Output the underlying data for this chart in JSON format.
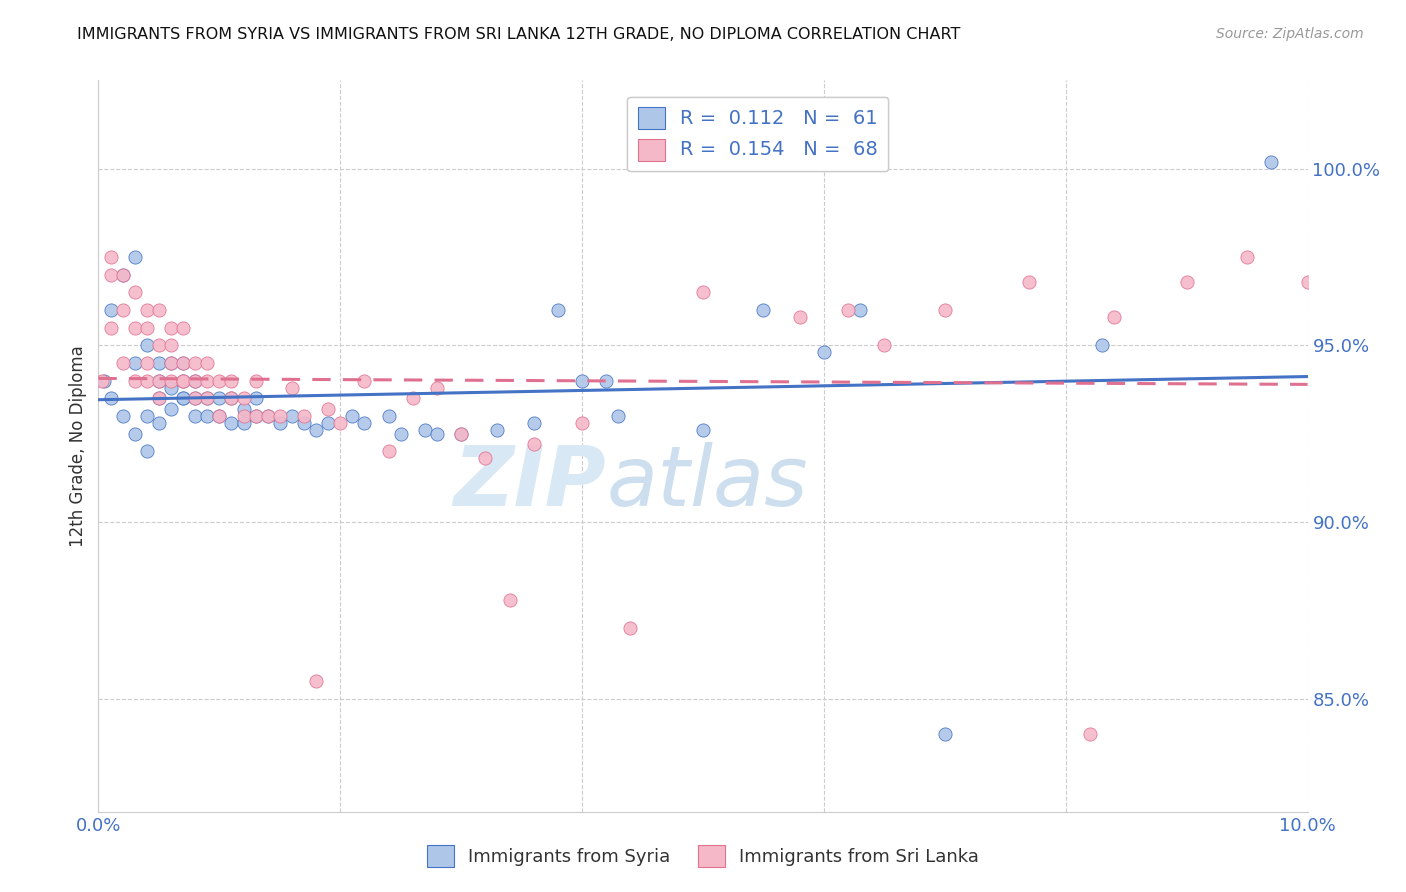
{
  "title": "IMMIGRANTS FROM SYRIA VS IMMIGRANTS FROM SRI LANKA 12TH GRADE, NO DIPLOMA CORRELATION CHART",
  "source": "Source: ZipAtlas.com",
  "ylabel": "12th Grade, No Diploma",
  "x_min": 0.0,
  "x_max": 0.1,
  "y_min": 0.818,
  "y_max": 1.025,
  "x_ticks": [
    0.0,
    0.02,
    0.04,
    0.06,
    0.08,
    0.1
  ],
  "x_tick_labels": [
    "0.0%",
    "",
    "",
    "",
    "",
    "10.0%"
  ],
  "y_ticks": [
    0.85,
    0.9,
    0.95,
    1.0
  ],
  "y_tick_labels_right": [
    "85.0%",
    "90.0%",
    "95.0%",
    "100.0%"
  ],
  "color_syria": "#aec6e8",
  "color_sri_lanka": "#f5b8c8",
  "color_syria_line": "#4472c4",
  "color_sri_lanka_line": "#e07090",
  "color_grid": "#cccccc",
  "color_ticks": "#4472c4",
  "R_syria": 0.112,
  "N_syria": 61,
  "R_sri_lanka": 0.154,
  "N_sri_lanka": 68,
  "syria_scatter_x": [
    0.0005,
    0.001,
    0.001,
    0.002,
    0.002,
    0.003,
    0.003,
    0.003,
    0.004,
    0.004,
    0.004,
    0.005,
    0.005,
    0.005,
    0.005,
    0.006,
    0.006,
    0.006,
    0.007,
    0.007,
    0.007,
    0.007,
    0.008,
    0.008,
    0.008,
    0.009,
    0.009,
    0.01,
    0.01,
    0.011,
    0.011,
    0.012,
    0.012,
    0.013,
    0.013,
    0.014,
    0.015,
    0.016,
    0.017,
    0.018,
    0.019,
    0.021,
    0.022,
    0.025,
    0.027,
    0.03,
    0.033,
    0.036,
    0.04,
    0.043,
    0.05,
    0.055,
    0.06,
    0.063,
    0.07,
    0.083,
    0.024,
    0.028,
    0.038,
    0.042,
    0.097
  ],
  "syria_scatter_y": [
    0.94,
    0.935,
    0.96,
    0.93,
    0.97,
    0.925,
    0.945,
    0.975,
    0.92,
    0.93,
    0.95,
    0.928,
    0.935,
    0.94,
    0.945,
    0.932,
    0.938,
    0.945,
    0.935,
    0.94,
    0.945,
    0.935,
    0.93,
    0.935,
    0.94,
    0.93,
    0.935,
    0.93,
    0.935,
    0.928,
    0.935,
    0.928,
    0.932,
    0.93,
    0.935,
    0.93,
    0.928,
    0.93,
    0.928,
    0.926,
    0.928,
    0.93,
    0.928,
    0.925,
    0.926,
    0.925,
    0.926,
    0.928,
    0.94,
    0.93,
    0.926,
    0.96,
    0.948,
    0.96,
    0.84,
    0.95,
    0.93,
    0.925,
    0.96,
    0.94,
    1.002
  ],
  "sri_lanka_scatter_x": [
    0.0003,
    0.001,
    0.001,
    0.001,
    0.002,
    0.002,
    0.002,
    0.003,
    0.003,
    0.003,
    0.004,
    0.004,
    0.004,
    0.004,
    0.005,
    0.005,
    0.005,
    0.005,
    0.006,
    0.006,
    0.006,
    0.006,
    0.007,
    0.007,
    0.007,
    0.007,
    0.008,
    0.008,
    0.008,
    0.009,
    0.009,
    0.009,
    0.01,
    0.01,
    0.011,
    0.011,
    0.012,
    0.012,
    0.013,
    0.013,
    0.014,
    0.015,
    0.016,
    0.017,
    0.019,
    0.02,
    0.022,
    0.024,
    0.028,
    0.03,
    0.032,
    0.036,
    0.04,
    0.044,
    0.05,
    0.058,
    0.062,
    0.065,
    0.07,
    0.077,
    0.084,
    0.09,
    0.095,
    0.1,
    0.018,
    0.026,
    0.034,
    0.082
  ],
  "sri_lanka_scatter_y": [
    0.94,
    0.97,
    0.955,
    0.975,
    0.96,
    0.97,
    0.945,
    0.955,
    0.965,
    0.94,
    0.955,
    0.96,
    0.945,
    0.94,
    0.95,
    0.96,
    0.94,
    0.935,
    0.95,
    0.94,
    0.945,
    0.955,
    0.94,
    0.945,
    0.955,
    0.94,
    0.94,
    0.945,
    0.935,
    0.94,
    0.945,
    0.935,
    0.94,
    0.93,
    0.935,
    0.94,
    0.93,
    0.935,
    0.93,
    0.94,
    0.93,
    0.93,
    0.938,
    0.93,
    0.932,
    0.928,
    0.94,
    0.92,
    0.938,
    0.925,
    0.918,
    0.922,
    0.928,
    0.87,
    0.965,
    0.958,
    0.96,
    0.95,
    0.96,
    0.968,
    0.958,
    0.968,
    0.975,
    0.968,
    0.855,
    0.935,
    0.878,
    0.84
  ],
  "background_color": "#ffffff",
  "watermark_zip": "ZIP",
  "watermark_atlas": "atlas",
  "watermark_color": "#d8e8f5"
}
